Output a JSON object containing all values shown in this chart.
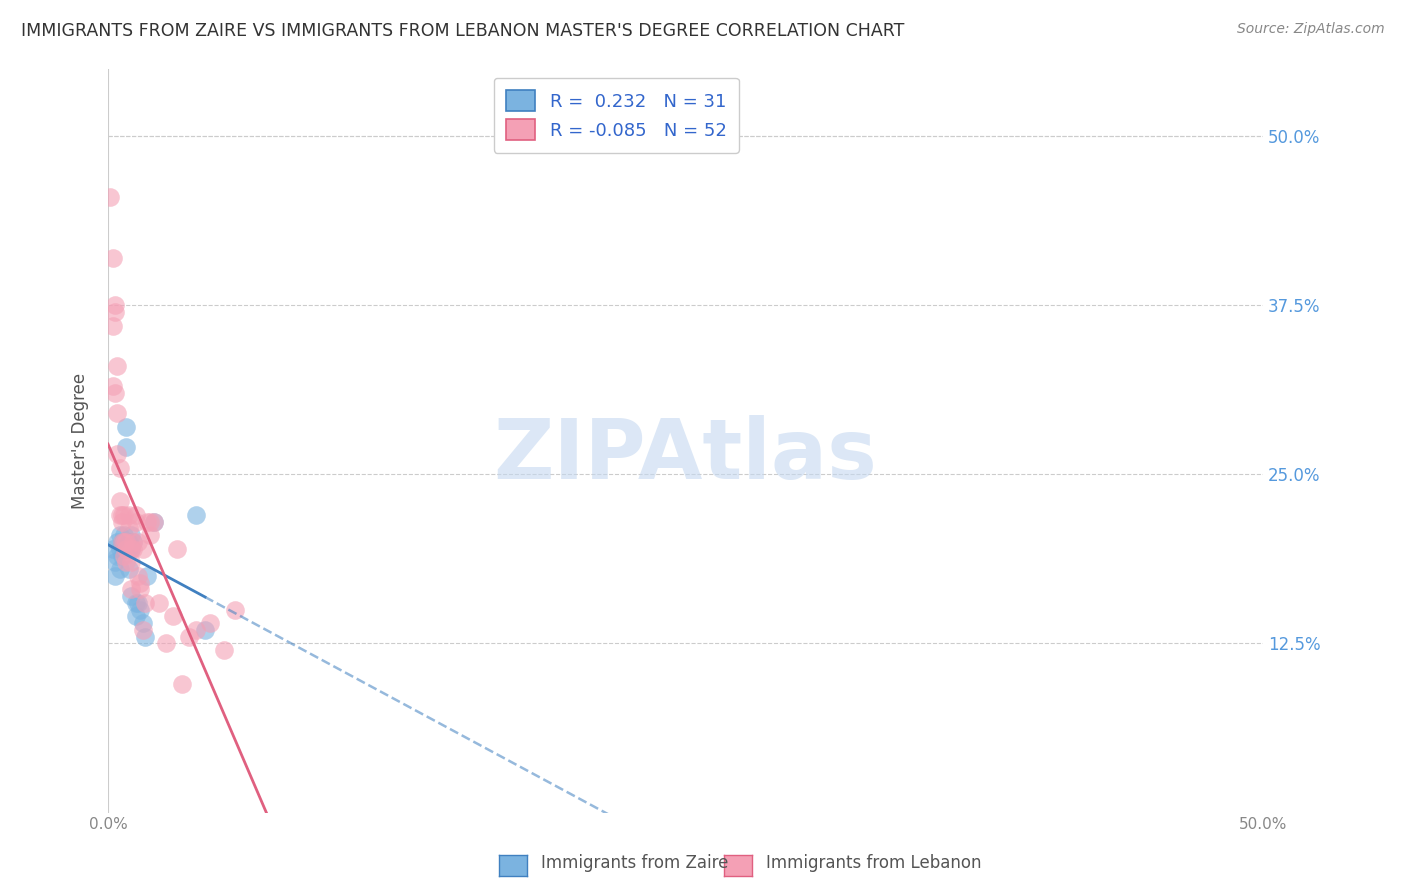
{
  "title": "IMMIGRANTS FROM ZAIRE VS IMMIGRANTS FROM LEBANON MASTER'S DEGREE CORRELATION CHART",
  "source": "Source: ZipAtlas.com",
  "ylabel": "Master's Degree",
  "ytick_labels": [
    "12.5%",
    "25.0%",
    "37.5%",
    "50.0%"
  ],
  "ytick_values": [
    0.125,
    0.25,
    0.375,
    0.5
  ],
  "xlim": [
    0.0,
    0.5
  ],
  "ylim": [
    0.0,
    0.55
  ],
  "zaire_color": "#7bb3e0",
  "lebanon_color": "#f4a0b5",
  "zaire_line_color": "#4080c0",
  "lebanon_line_color": "#e06080",
  "watermark": "ZIPAtlas",
  "zaire_points_x": [
    0.002,
    0.003,
    0.003,
    0.004,
    0.004,
    0.005,
    0.005,
    0.005,
    0.006,
    0.006,
    0.007,
    0.007,
    0.008,
    0.008,
    0.009,
    0.009,
    0.009,
    0.01,
    0.01,
    0.01,
    0.011,
    0.012,
    0.012,
    0.013,
    0.014,
    0.015,
    0.016,
    0.017,
    0.02,
    0.038,
    0.042
  ],
  "zaire_points_y": [
    0.195,
    0.185,
    0.175,
    0.2,
    0.19,
    0.205,
    0.195,
    0.18,
    0.2,
    0.19,
    0.205,
    0.195,
    0.285,
    0.27,
    0.2,
    0.195,
    0.18,
    0.205,
    0.195,
    0.16,
    0.2,
    0.155,
    0.145,
    0.155,
    0.15,
    0.14,
    0.13,
    0.175,
    0.215,
    0.22,
    0.135
  ],
  "lebanon_points_x": [
    0.001,
    0.002,
    0.002,
    0.002,
    0.003,
    0.003,
    0.003,
    0.004,
    0.004,
    0.004,
    0.005,
    0.005,
    0.005,
    0.006,
    0.006,
    0.006,
    0.007,
    0.007,
    0.007,
    0.008,
    0.008,
    0.008,
    0.009,
    0.009,
    0.01,
    0.01,
    0.01,
    0.011,
    0.011,
    0.012,
    0.012,
    0.013,
    0.013,
    0.014,
    0.014,
    0.015,
    0.015,
    0.016,
    0.017,
    0.018,
    0.018,
    0.02,
    0.022,
    0.025,
    0.028,
    0.03,
    0.032,
    0.035,
    0.038,
    0.044,
    0.05,
    0.055
  ],
  "lebanon_points_y": [
    0.455,
    0.41,
    0.36,
    0.315,
    0.375,
    0.37,
    0.31,
    0.33,
    0.265,
    0.295,
    0.255,
    0.22,
    0.23,
    0.22,
    0.215,
    0.2,
    0.19,
    0.22,
    0.2,
    0.195,
    0.2,
    0.185,
    0.22,
    0.21,
    0.195,
    0.185,
    0.165,
    0.2,
    0.195,
    0.22,
    0.215,
    0.175,
    0.2,
    0.17,
    0.165,
    0.195,
    0.135,
    0.155,
    0.215,
    0.205,
    0.215,
    0.215,
    0.155,
    0.125,
    0.145,
    0.195,
    0.095,
    0.13,
    0.135,
    0.14,
    0.12,
    0.15
  ]
}
